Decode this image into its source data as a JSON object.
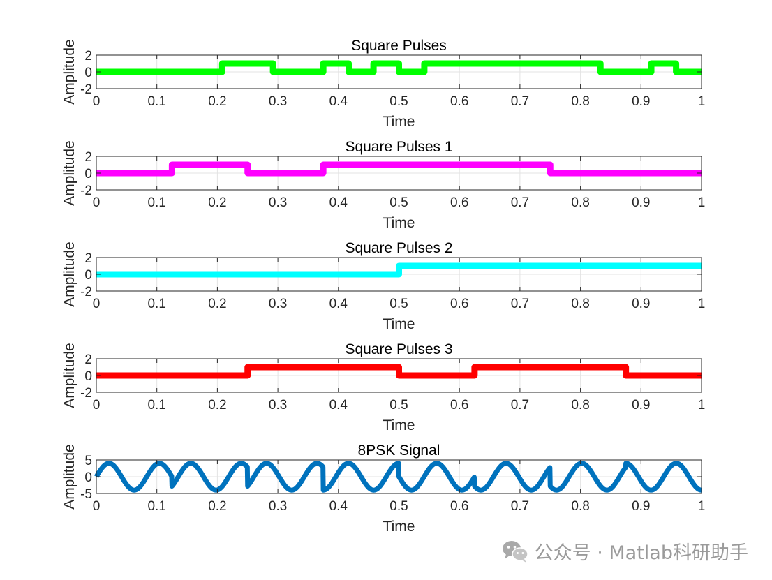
{
  "chart_data": [
    {
      "type": "line",
      "title": "Square Pulses",
      "xlabel": "Time",
      "ylabel": "Amplitude",
      "xlim": [
        0,
        1
      ],
      "ylim": [
        -2,
        2
      ],
      "xticks": [
        0,
        0.1,
        0.2,
        0.3,
        0.4,
        0.5,
        0.6,
        0.7,
        0.8,
        0.9,
        1
      ],
      "xticklabels": [
        "0",
        "0.1",
        "0.2",
        "0.3",
        "0.4",
        "0.5",
        "0.6",
        "0.7",
        "0.8",
        "0.9",
        "1"
      ],
      "yticks": [
        -2,
        0,
        2
      ],
      "yticklabels": [
        "-2",
        "0",
        "2"
      ],
      "color": "#00ff00",
      "series": [
        {
          "name": "Square Pulses",
          "x": [
            0,
            0.208,
            0.208,
            0.292,
            0.292,
            0.375,
            0.375,
            0.417,
            0.417,
            0.458,
            0.458,
            0.5,
            0.5,
            0.542,
            0.542,
            0.833,
            0.833,
            0.917,
            0.917,
            0.958,
            0.958,
            1
          ],
          "y": [
            0,
            0,
            1,
            1,
            0,
            0,
            1,
            1,
            0,
            0,
            1,
            1,
            0,
            0,
            1,
            1,
            0,
            0,
            1,
            1,
            0,
            0
          ]
        }
      ]
    },
    {
      "type": "line",
      "title": "Square Pulses 1",
      "xlabel": "Time",
      "ylabel": "Amplitude",
      "xlim": [
        0,
        1
      ],
      "ylim": [
        -2,
        2
      ],
      "xticks": [
        0,
        0.1,
        0.2,
        0.3,
        0.4,
        0.5,
        0.6,
        0.7,
        0.8,
        0.9,
        1
      ],
      "xticklabels": [
        "0",
        "0.1",
        "0.2",
        "0.3",
        "0.4",
        "0.5",
        "0.6",
        "0.7",
        "0.8",
        "0.9",
        "1"
      ],
      "yticks": [
        -2,
        0,
        2
      ],
      "yticklabels": [
        "-2",
        "0",
        "2"
      ],
      "color": "#ff00ff",
      "series": [
        {
          "name": "Square Pulses 1",
          "x": [
            0,
            0.125,
            0.125,
            0.25,
            0.25,
            0.375,
            0.375,
            0.75,
            0.75,
            1
          ],
          "y": [
            0,
            0,
            1,
            1,
            0,
            0,
            1,
            1,
            0,
            0
          ]
        }
      ]
    },
    {
      "type": "line",
      "title": "Square Pulses 2",
      "xlabel": "Time",
      "ylabel": "Amplitude",
      "xlim": [
        0,
        1
      ],
      "ylim": [
        -2,
        2
      ],
      "xticks": [
        0,
        0.1,
        0.2,
        0.3,
        0.4,
        0.5,
        0.6,
        0.7,
        0.8,
        0.9,
        1
      ],
      "xticklabels": [
        "0",
        "0.1",
        "0.2",
        "0.3",
        "0.4",
        "0.5",
        "0.6",
        "0.7",
        "0.8",
        "0.9",
        "1"
      ],
      "yticks": [
        -2,
        0,
        2
      ],
      "yticklabels": [
        "-2",
        "0",
        "2"
      ],
      "color": "#00ffff",
      "series": [
        {
          "name": "Square Pulses 2",
          "x": [
            0,
            0.5,
            0.5,
            1
          ],
          "y": [
            0,
            0,
            1,
            1
          ]
        }
      ]
    },
    {
      "type": "line",
      "title": "Square Pulses 3",
      "xlabel": "Time",
      "ylabel": "Amplitude",
      "xlim": [
        0,
        1
      ],
      "ylim": [
        -2,
        2
      ],
      "xticks": [
        0,
        0.1,
        0.2,
        0.3,
        0.4,
        0.5,
        0.6,
        0.7,
        0.8,
        0.9,
        1
      ],
      "xticklabels": [
        "0",
        "0.1",
        "0.2",
        "0.3",
        "0.4",
        "0.5",
        "0.6",
        "0.7",
        "0.8",
        "0.9",
        "1"
      ],
      "yticks": [
        -2,
        0,
        2
      ],
      "yticklabels": [
        "-2",
        "0",
        "2"
      ],
      "color": "#ff0000",
      "series": [
        {
          "name": "Square Pulses 3",
          "x": [
            0,
            0.25,
            0.25,
            0.5,
            0.5,
            0.625,
            0.625,
            0.875,
            0.875,
            1
          ],
          "y": [
            0,
            0,
            1,
            1,
            0,
            0,
            1,
            1,
            0,
            0
          ]
        }
      ]
    },
    {
      "type": "line",
      "title": "8PSK Signal",
      "xlabel": "Time",
      "ylabel": "Amplitude",
      "xlim": [
        0,
        1
      ],
      "ylim": [
        -5,
        5
      ],
      "xticks": [
        0,
        0.1,
        0.2,
        0.3,
        0.4,
        0.5,
        0.6,
        0.7,
        0.8,
        0.9,
        1
      ],
      "xticklabels": [
        "0",
        "0.1",
        "0.2",
        "0.3",
        "0.4",
        "0.5",
        "0.6",
        "0.7",
        "0.8",
        "0.9",
        "1"
      ],
      "yticks": [
        -5,
        0,
        5
      ],
      "yticklabels": [
        "-5",
        "0",
        "5"
      ],
      "color": "#0072bd",
      "signal": {
        "amplitude": 4,
        "frequency_hz": 12,
        "symbol_duration": 0.125,
        "symbol_phases_deg": [
          0,
          135,
          315,
          90,
          180,
          45,
          225,
          270
        ]
      },
      "series": [
        {
          "name": "8PSK Signal"
        }
      ]
    }
  ],
  "watermark": {
    "text": "公众号 · Matlab科研助手",
    "icon": "wechat-icon"
  }
}
